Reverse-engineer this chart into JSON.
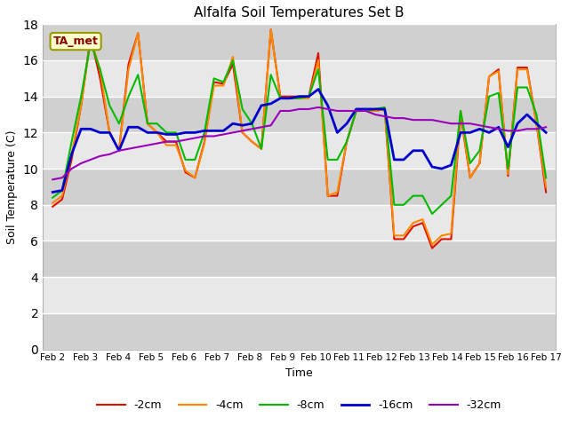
{
  "title": "Alfalfa Soil Temperatures Set B",
  "xlabel": "Time",
  "ylabel": "Soil Temperature (C)",
  "ylim": [
    0,
    18
  ],
  "yticks": [
    0,
    2,
    4,
    6,
    8,
    10,
    12,
    14,
    16,
    18
  ],
  "annotation_text": "TA_met",
  "annotation_color": "#8B0000",
  "annotation_bg": "#ffffcc",
  "annotation_border": "#999900",
  "legend_labels": [
    "-2cm",
    "-4cm",
    "-8cm",
    "-16cm",
    "-32cm"
  ],
  "line_colors": [
    "#dd1100",
    "#ff8800",
    "#00bb00",
    "#0000cc",
    "#9900bb"
  ],
  "line_widths": [
    1.5,
    1.5,
    1.5,
    2.0,
    1.5
  ],
  "x_tick_labels": [
    "Feb 2",
    "Feb 3",
    "Feb 4",
    "Feb 5",
    "Feb 6",
    "Feb 7",
    "Feb 8",
    "Feb 9",
    "Feb 10",
    "Feb 11",
    "Feb 12",
    "Feb 13",
    "Feb 14",
    "Feb 15",
    "Feb 16",
    "Feb 17"
  ],
  "fig_bg": "#ffffff",
  "axes_bg": "#e8e8e8",
  "band_color": "#d0d0d0",
  "series_neg2cm": [
    7.9,
    8.3,
    10.5,
    13.5,
    17.3,
    15.0,
    12.0,
    11.0,
    15.8,
    17.5,
    12.5,
    12.0,
    11.5,
    11.5,
    9.8,
    9.5,
    11.5,
    14.8,
    14.7,
    15.8,
    12.0,
    11.5,
    11.1,
    17.7,
    14.0,
    14.0,
    14.0,
    14.0,
    16.4,
    8.5,
    8.5,
    11.5,
    13.2,
    13.2,
    13.2,
    13.3,
    6.1,
    6.1,
    6.8,
    7.0,
    5.6,
    6.1,
    6.1,
    13.0,
    9.5,
    10.3,
    15.1,
    15.5,
    9.6,
    15.6,
    15.6,
    12.5,
    8.7
  ],
  "series_neg4cm": [
    8.1,
    8.5,
    10.8,
    13.5,
    17.2,
    15.5,
    12.0,
    11.0,
    15.5,
    17.5,
    12.5,
    12.0,
    11.3,
    11.3,
    9.9,
    9.5,
    11.4,
    14.6,
    14.6,
    16.2,
    12.0,
    11.5,
    11.1,
    17.7,
    13.9,
    13.9,
    13.9,
    13.9,
    16.0,
    8.5,
    8.7,
    11.5,
    13.2,
    13.2,
    13.2,
    13.3,
    6.3,
    6.3,
    7.0,
    7.2,
    5.8,
    6.3,
    6.4,
    13.2,
    9.5,
    10.3,
    15.1,
    15.4,
    9.7,
    15.5,
    15.5,
    12.5,
    9.0
  ],
  "series_neg8cm": [
    8.4,
    8.8,
    11.5,
    14.0,
    17.0,
    15.5,
    13.5,
    12.5,
    14.0,
    15.2,
    12.5,
    12.5,
    12.0,
    12.0,
    10.5,
    10.5,
    12.0,
    15.0,
    14.8,
    16.0,
    13.3,
    12.5,
    11.1,
    15.2,
    13.9,
    13.9,
    13.9,
    14.0,
    15.5,
    10.5,
    10.5,
    11.5,
    13.2,
    13.2,
    13.3,
    13.4,
    8.0,
    8.0,
    8.5,
    8.5,
    7.5,
    8.0,
    8.5,
    13.2,
    10.3,
    11.0,
    14.0,
    14.2,
    10.0,
    14.5,
    14.5,
    13.0,
    9.5
  ],
  "series_neg16cm": [
    8.7,
    8.8,
    10.8,
    12.2,
    12.2,
    12.0,
    12.0,
    11.0,
    12.3,
    12.3,
    12.0,
    12.0,
    11.9,
    11.9,
    12.0,
    12.0,
    12.1,
    12.1,
    12.1,
    12.5,
    12.4,
    12.5,
    13.5,
    13.6,
    13.9,
    13.9,
    14.0,
    14.0,
    14.4,
    13.5,
    12.0,
    12.5,
    13.3,
    13.3,
    13.3,
    13.3,
    10.5,
    10.5,
    11.0,
    11.0,
    10.1,
    10.0,
    10.2,
    12.0,
    12.0,
    12.2,
    12.0,
    12.3,
    11.2,
    12.5,
    13.0,
    12.5,
    12.0
  ],
  "series_neg32cm": [
    9.4,
    9.5,
    10.0,
    10.3,
    10.5,
    10.7,
    10.8,
    11.0,
    11.1,
    11.2,
    11.3,
    11.4,
    11.5,
    11.5,
    11.6,
    11.7,
    11.8,
    11.8,
    11.9,
    12.0,
    12.1,
    12.2,
    12.3,
    12.4,
    13.2,
    13.2,
    13.3,
    13.3,
    13.4,
    13.3,
    13.2,
    13.2,
    13.2,
    13.2,
    13.0,
    12.9,
    12.8,
    12.8,
    12.7,
    12.7,
    12.7,
    12.6,
    12.5,
    12.5,
    12.5,
    12.4,
    12.3,
    12.2,
    12.1,
    12.1,
    12.2,
    12.2,
    12.3
  ]
}
